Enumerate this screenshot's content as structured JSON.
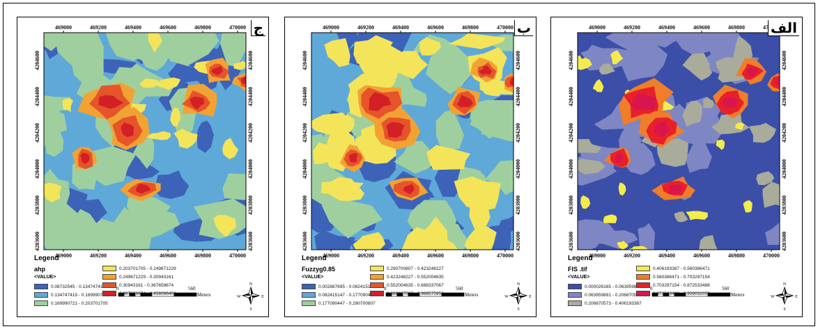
{
  "figure": {
    "panels": [
      {
        "id": "jeem",
        "title": "ج",
        "layer": "ahp",
        "value_header": "<VALUE>",
        "legend_title": "Legend",
        "classes": [
          {
            "label": "0.08732545 - 0.134747419",
            "color": "#3d63b8"
          },
          {
            "label": "0.134747419 - 0.169990721",
            "color": "#5fa9d8"
          },
          {
            "label": "0.169990721 - 0.203701705",
            "color": "#9fcf9e"
          },
          {
            "label": "0.203701705 - 0.249671229",
            "color": "#f4e45a"
          },
          {
            "label": "0.249671229 - 0.30943161",
            "color": "#f2a233"
          },
          {
            "label": "0.30943161 - 0.367659674",
            "color": "#e6542a"
          },
          {
            "label": "0.367659674 - 0.458066404",
            "color": "#d31f26"
          }
        ],
        "scale_start": "0",
        "scale_end": "560",
        "scale_unit": "Meters"
      },
      {
        "id": "beh",
        "title": "ب",
        "layer": "Fuzzyg0.85",
        "value_header": "<VALUE>",
        "legend_title": "Legend",
        "classes": [
          {
            "label": "0.002887695 - 0.082415147",
            "color": "#3d63b8"
          },
          {
            "label": "0.082415147 - 0.177090447",
            "color": "#5fa9d8"
          },
          {
            "label": "0.177090447 - 0.290700807",
            "color": "#9fcf9e"
          },
          {
            "label": "0.290700807 - 0.423248227",
            "color": "#f4e45a"
          },
          {
            "label": "0.423248227 - 0.552004635",
            "color": "#f2a233"
          },
          {
            "label": "0.552004635 - 0.688337067",
            "color": "#e6542a"
          },
          {
            "label": "0.688337067 - 0.968575954",
            "color": "#d31f26"
          }
        ],
        "scale_start": "0",
        "scale_end": "560",
        "scale_unit": "Meters"
      },
      {
        "id": "alef",
        "title": "الف",
        "layer": "FIS .tif",
        "value_header": "<VALUE>",
        "legend_title": "Legend",
        "classes": [
          {
            "label": "0.000026165 - 0.063959891",
            "color": "#3b4fa8"
          },
          {
            "label": "0.063959891 - 0.206870573",
            "color": "#7f86c4"
          },
          {
            "label": "0.206870573 - 0.406193387",
            "color": "#a9ab9b"
          },
          {
            "label": "0.406193387 - 0.560386471",
            "color": "#f3ec4c"
          },
          {
            "label": "0.560386471 - 0.703297154",
            "color": "#ef7d2a"
          },
          {
            "label": "0.703297154 - 0.872533488",
            "color": "#e7202c"
          },
          {
            "label": "0.872533488 - 0.959032059",
            "color": "#d8154c"
          }
        ],
        "scale_start": "0",
        "scale_end": "560",
        "scale_unit": "Meters"
      }
    ],
    "x_ticks": [
      "469000",
      "469200",
      "469400",
      "469600",
      "469800",
      "470000"
    ],
    "y_ticks": [
      "4204600",
      "4204400",
      "4204200",
      "4204000",
      "4203800",
      "4203600"
    ],
    "compass": {
      "n": "N",
      "s": "S",
      "e": "E",
      "w": "W"
    }
  }
}
